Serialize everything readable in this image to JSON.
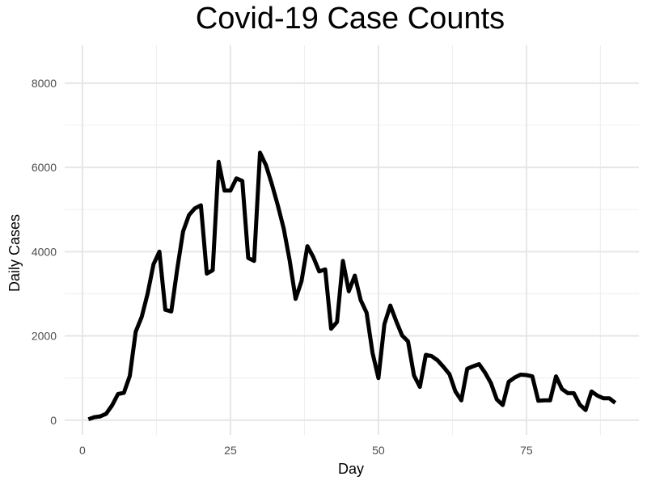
{
  "chart_data": {
    "type": "line",
    "title": "Covid-19 Case Counts",
    "xlabel": "Day",
    "ylabel": "Daily Cases",
    "xlim": [
      -3,
      94
    ],
    "ylim": [
      -350,
      8900
    ],
    "x_ticks": [
      0,
      25,
      50,
      75
    ],
    "y_ticks": [
      0,
      2000,
      4000,
      6000,
      8000
    ],
    "grid": true,
    "series": [
      {
        "color": "#000000",
        "x": [
          1,
          2,
          3,
          4,
          5,
          6,
          7,
          8,
          9,
          10,
          11,
          12,
          13,
          14,
          15,
          16,
          17,
          18,
          19,
          20,
          21,
          22,
          23,
          24,
          25,
          26,
          27,
          28,
          29,
          30,
          31,
          32,
          33,
          34,
          35,
          36,
          37,
          38,
          39,
          40,
          41,
          42,
          43,
          44,
          45,
          46,
          47,
          48,
          49,
          50,
          51,
          52,
          53,
          54,
          55,
          56,
          57,
          58,
          59,
          60,
          61,
          62,
          63,
          64,
          65,
          66,
          67,
          68,
          69,
          70,
          71,
          72,
          73,
          74,
          75,
          76,
          77,
          78,
          79,
          80,
          81,
          82,
          83,
          84,
          85,
          86,
          87,
          88,
          89,
          90
        ],
        "y": [
          20,
          70,
          90,
          150,
          350,
          620,
          650,
          1050,
          2100,
          2450,
          3000,
          3700,
          4000,
          2620,
          2580,
          3580,
          4480,
          4870,
          5030,
          5100,
          3480,
          3560,
          6130,
          5450,
          5450,
          5740,
          5680,
          3850,
          3780,
          6350,
          6050,
          5600,
          5100,
          4550,
          3800,
          2880,
          3300,
          4130,
          3870,
          3530,
          3580,
          2170,
          2330,
          3780,
          3060,
          3430,
          2850,
          2550,
          1600,
          1000,
          2280,
          2720,
          2350,
          2010,
          1870,
          1060,
          790,
          1550,
          1520,
          1420,
          1260,
          1090,
          680,
          470,
          1220,
          1280,
          1330,
          1130,
          880,
          490,
          360,
          910,
          1010,
          1080,
          1070,
          1040,
          460,
          470,
          470,
          1040,
          740,
          640,
          640,
          370,
          240,
          680,
          580,
          520,
          520,
          410
        ]
      }
    ]
  }
}
